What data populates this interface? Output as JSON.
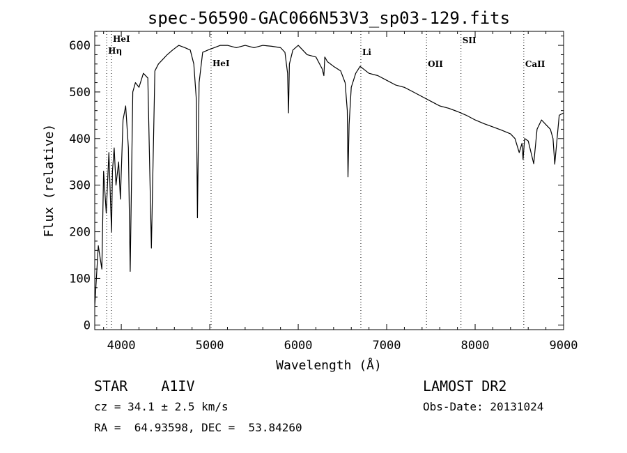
{
  "chart_data": {
    "type": "line",
    "title": "spec-56590-GAC066N53V3_sp03-129.fits",
    "xlabel": "Wavelength (Å)",
    "ylabel": "Flux (relative)",
    "xlim": [
      3700,
      9000
    ],
    "ylim": [
      -10,
      630
    ],
    "xticks": [
      4000,
      5000,
      6000,
      7000,
      8000,
      9000
    ],
    "yticks": [
      0,
      100,
      200,
      300,
      400,
      500,
      600
    ],
    "grid": false,
    "series": [
      {
        "x": [
          3700,
          3740,
          3780,
          3800,
          3830,
          3860,
          3890,
          3900,
          3920,
          3940,
          3970,
          3990,
          4020,
          4050,
          4080,
          4101,
          4130,
          4160,
          4200,
          4250,
          4300,
          4340,
          4380,
          4420,
          4470,
          4520,
          4580,
          4650,
          4720,
          4780,
          4820,
          4850,
          4861,
          4880,
          4920,
          4980,
          5050,
          5120,
          5200,
          5300,
          5400,
          5500,
          5600,
          5700,
          5800,
          5850,
          5880,
          5890,
          5900,
          5940,
          6000,
          6100,
          6200,
          6270,
          6290,
          6300,
          6330,
          6400,
          6480,
          6530,
          6555,
          6563,
          6575,
          6600,
          6650,
          6700,
          6800,
          6900,
          7000,
          7100,
          7200,
          7300,
          7400,
          7500,
          7550,
          7600,
          7700,
          7800,
          7900,
          8000,
          8100,
          8200,
          8300,
          8400,
          8450,
          8498,
          8530,
          8542,
          8560,
          8600,
          8662,
          8700,
          8750,
          8800,
          8850,
          8880,
          8900,
          8950,
          9000
        ],
        "y": [
          40,
          170,
          120,
          330,
          240,
          370,
          200,
          330,
          380,
          300,
          350,
          270,
          440,
          470,
          380,
          115,
          500,
          520,
          510,
          540,
          530,
          165,
          545,
          560,
          570,
          580,
          590,
          600,
          595,
          590,
          560,
          480,
          230,
          520,
          585,
          590,
          595,
          600,
          600,
          595,
          600,
          595,
          600,
          598,
          595,
          585,
          540,
          455,
          560,
          590,
          600,
          580,
          575,
          550,
          535,
          575,
          565,
          555,
          545,
          520,
          460,
          318,
          430,
          510,
          540,
          555,
          540,
          535,
          525,
          515,
          510,
          500,
          490,
          480,
          475,
          470,
          465,
          458,
          450,
          440,
          432,
          425,
          418,
          410,
          400,
          370,
          390,
          355,
          400,
          395,
          346,
          420,
          440,
          430,
          420,
          400,
          345,
          450,
          455
        ]
      }
    ],
    "annotations": {
      "lines": [
        {
          "x": 3835,
          "label": "Hη"
        },
        {
          "x": 3889,
          "label": "HeI"
        },
        {
          "x": 5015,
          "label": "HeI"
        },
        {
          "x": 6708,
          "label": "Li"
        },
        {
          "x": 7450,
          "label": "OII"
        },
        {
          "x": 7840,
          "label": "SII"
        },
        {
          "x": 8550,
          "label": "CaII"
        }
      ]
    }
  },
  "info": {
    "object": "STAR    A1IV",
    "velocity": "cz = 34.1 ± 2.5 km/s",
    "coords": "RA =  64.93598, DEC =  53.84260",
    "survey": "LAMOST DR2",
    "obsdate": "Obs-Date: 20131024"
  }
}
